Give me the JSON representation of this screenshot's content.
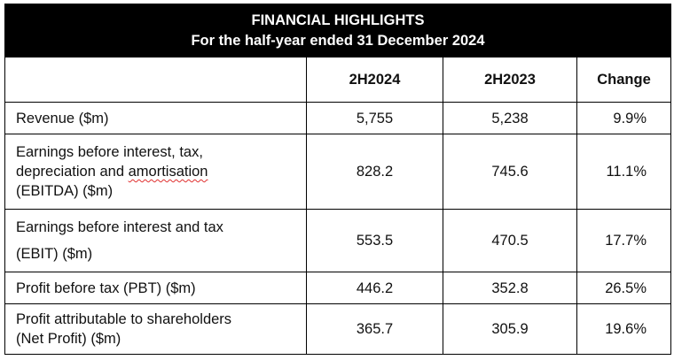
{
  "header": {
    "title": "FINANCIAL HIGHLIGHTS",
    "subtitle": "For the half-year ended 31 December 2024"
  },
  "columns": [
    "",
    "2H2024",
    "2H2023",
    "Change"
  ],
  "rows": [
    {
      "label_parts": [
        "Revenue ($m)"
      ],
      "v2024": "5,755",
      "v2023": "5,238",
      "change": "9.9%"
    },
    {
      "label_parts": [
        "Earnings before interest, tax,",
        "depreciation and ",
        "amortisation",
        "(EBITDA) ($m)"
      ],
      "v2024": "828.2",
      "v2023": "745.6",
      "change": "11.1%"
    },
    {
      "label_parts": [
        "Earnings before interest and tax",
        "(EBIT) ($m)"
      ],
      "v2024": "553.5",
      "v2023": "470.5",
      "change": "17.7%"
    },
    {
      "label_parts": [
        "Profit before tax (PBT) ($m)"
      ],
      "v2024": "446.2",
      "v2023": "352.8",
      "change": "26.5%"
    },
    {
      "label_parts": [
        "Profit attributable to shareholders",
        "(Net Profit) ($m)"
      ],
      "v2024": "365.7",
      "v2023": "305.9",
      "change": "19.6%"
    }
  ]
}
